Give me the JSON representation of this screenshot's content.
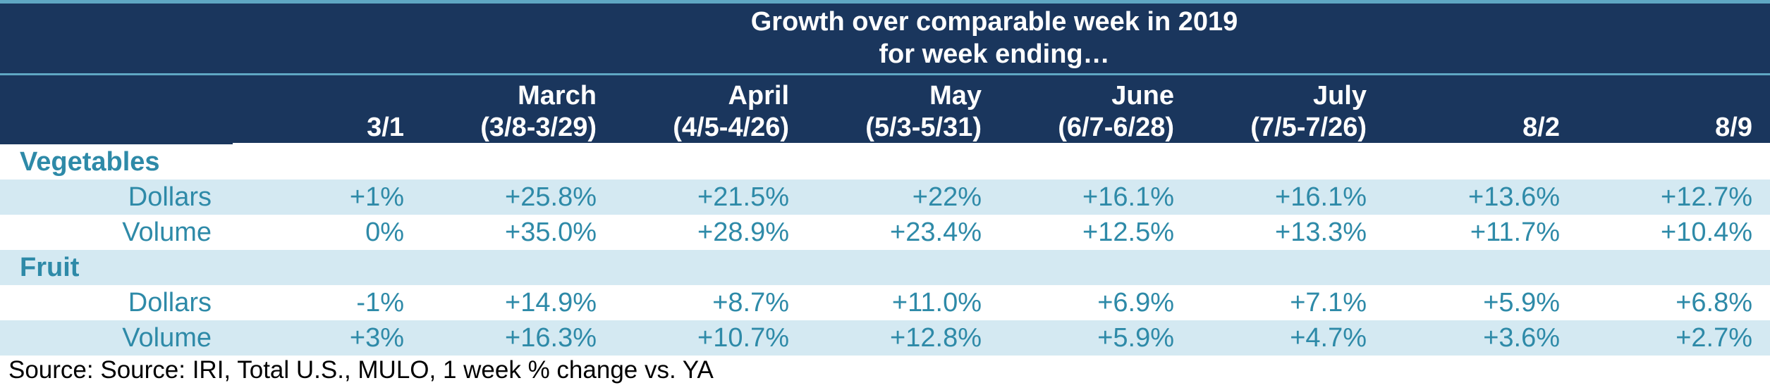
{
  "chart_data": {
    "type": "table",
    "title": [
      "Growth over comparable week in 2019",
      "for week ending…"
    ],
    "columns": [
      [
        "",
        "3/1"
      ],
      [
        "March",
        "(3/8-3/29)"
      ],
      [
        "April",
        "(4/5-4/26)"
      ],
      [
        "May",
        "(5/3-5/31)"
      ],
      [
        "June",
        "(6/7-6/28)"
      ],
      [
        "July",
        "(7/5-7/26)"
      ],
      [
        "",
        "8/2"
      ],
      [
        "",
        "8/9"
      ]
    ],
    "groups": [
      {
        "name": "Vegetables",
        "rows": [
          {
            "label": "Dollars",
            "values": [
              "+1%",
              "+25.8%",
              "+21.5%",
              "+22%",
              "+16.1%",
              "+16.1%",
              "+13.6%",
              "+12.7%"
            ]
          },
          {
            "label": "Volume",
            "values": [
              "0%",
              "+35.0%",
              "+28.9%",
              "+23.4%",
              "+12.5%",
              "+13.3%",
              "+11.7%",
              "+10.4%"
            ]
          }
        ]
      },
      {
        "name": "Fruit",
        "rows": [
          {
            "label": "Dollars",
            "values": [
              "-1%",
              "+14.9%",
              "+8.7%",
              "+11.0%",
              "+6.9%",
              "+7.1%",
              "+5.9%",
              "+6.8%"
            ]
          },
          {
            "label": "Volume",
            "values": [
              "+3%",
              "+16.3%",
              "+10.7%",
              "+12.8%",
              "+5.9%",
              "+4.7%",
              "+3.6%",
              "+2.7%"
            ]
          }
        ]
      }
    ],
    "colors": {
      "header_bg": "#1a365d",
      "header_rule": "#5fa7c3",
      "band": "#d4e9f2",
      "text": "#2e8aa8"
    }
  },
  "source": "Source: Source: IRI, Total U.S., MULO, 1 week % change vs. YA"
}
